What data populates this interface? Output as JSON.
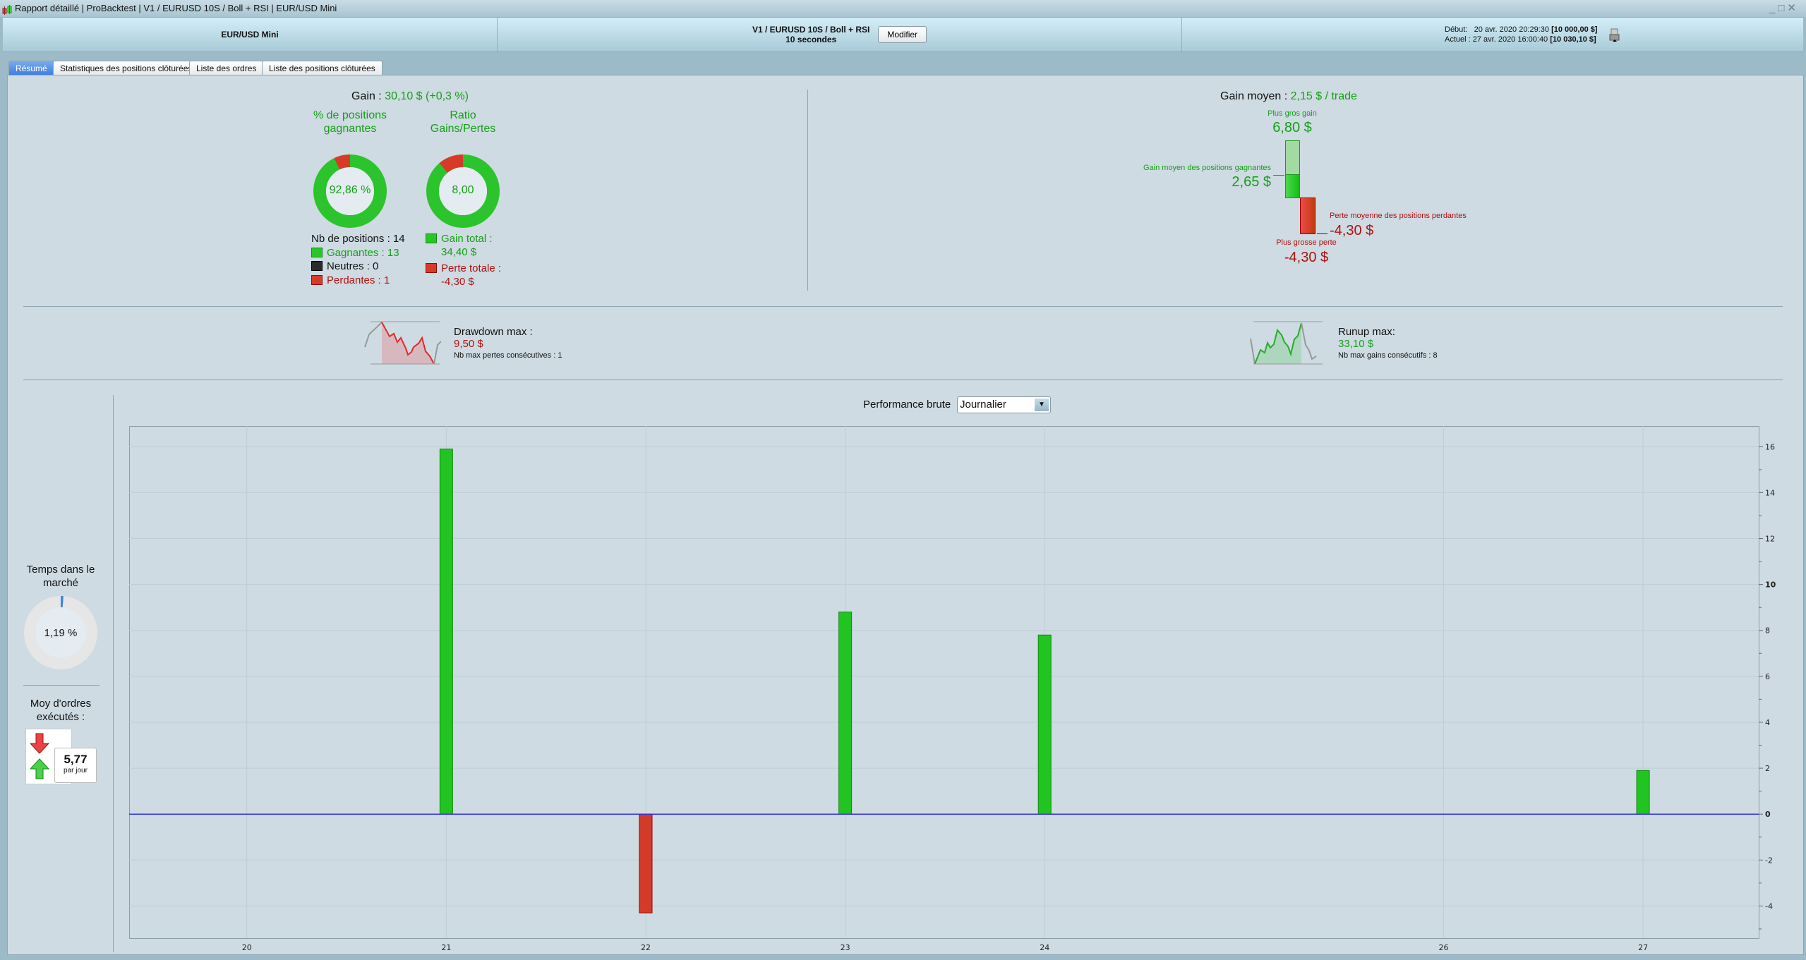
{
  "window": {
    "title_parts": [
      "Rapport détaillé",
      "ProBacktest",
      "V1 / EURUSD 10S / Boll + RSI",
      "EUR/USD Mini"
    ],
    "controls": [
      "minimize",
      "maximize",
      "close"
    ]
  },
  "header": {
    "instrument": "EUR/USD Mini",
    "strategy": "V1 / EURUSD 10S / Boll + RSI",
    "timeframe": "10 secondes",
    "modify_label": "Modifier",
    "start_label": "Début:",
    "start_date": "20 avr. 2020 20:29:30",
    "start_capital": "[10 000,00 $]",
    "current_label": "Actuel :",
    "current_date": "27 avr. 2020 16:00:40",
    "current_capital": "[10 030,10 $]"
  },
  "tabs": [
    {
      "label": "Résumé",
      "active": true
    },
    {
      "label": "Statistiques des positions clôturées"
    },
    {
      "label": "Liste des ordres"
    },
    {
      "label": "Liste des positions clôturées"
    }
  ],
  "summary": {
    "gain_label": "Gain :",
    "gain_value": "30,10 $ (+0,3 %)",
    "win_pct_title": "% de positions gagnantes",
    "win_pct_value": "92,86 %",
    "win_fraction": 0.9286,
    "ratio_title": "Ratio Gains/Pertes",
    "ratio_value": "8,00",
    "ratio_fraction": 0.8889,
    "nb_positions": "Nb de positions : 14",
    "winners": "Gagnantes : 13",
    "neutral": "Neutres : 0",
    "losers": "Perdantes : 1",
    "gain_total_label": "Gain total :",
    "gain_total_value": "34,40 $",
    "perte_total_label": "Perte totale :",
    "perte_total_value": "-4,30 $",
    "avg_gain_label": "Gain moyen :",
    "avg_gain_value": "2,15 $ / trade",
    "biggest_gain_label": "Plus gros gain",
    "biggest_gain_value": "6,80 $",
    "avg_win_label": "Gain moyen des positions gagnantes",
    "avg_win_value": "2,65 $",
    "avg_loss_label": "Perte moyenne des positions perdantes",
    "avg_loss_value": "-4,30 $",
    "biggest_loss_label": "Plus grosse perte",
    "biggest_loss_value": "-4,30 $"
  },
  "drawdown": {
    "label": "Drawdown max :",
    "value": "9,50 $",
    "sub": "Nb max pertes consécutives : 1"
  },
  "runup": {
    "label": "Runup max:",
    "value": "33,10 $",
    "sub": "Nb max gains consécutifs : 8"
  },
  "sidebar": {
    "time_title": "Temps dans le marché",
    "time_value": "1,19 %",
    "time_fraction": 0.0119,
    "orders_title": "Moy d'ordres exécutés :",
    "orders_value": "5,77",
    "orders_unit": "par jour"
  },
  "performance": {
    "label": "Performance brute",
    "period": "Journalier"
  },
  "colors": {
    "positive": "#22c422",
    "negative": "#d43a2a",
    "zero_line": "#3030e0",
    "accent_tab": "#4a88e6"
  },
  "chart_data": {
    "type": "bar",
    "x": [
      21,
      22,
      23,
      24,
      27
    ],
    "values": [
      15.9,
      -4.3,
      8.8,
      7.8,
      1.9
    ],
    "x_ticks": [
      "20",
      "21",
      "22",
      "23",
      "24",
      "26",
      "27"
    ],
    "x_tick_values": [
      20,
      21,
      22,
      23,
      24,
      26,
      27
    ],
    "y_ticks": [
      "16",
      "14",
      "12",
      "10",
      "8",
      "6",
      "4",
      "2",
      "0",
      "-2",
      "-4"
    ],
    "xlim": [
      19.41,
      27.58
    ],
    "ylim": [
      -5.4,
      16.9
    ],
    "grid": true,
    "y_axis_side": "right"
  }
}
